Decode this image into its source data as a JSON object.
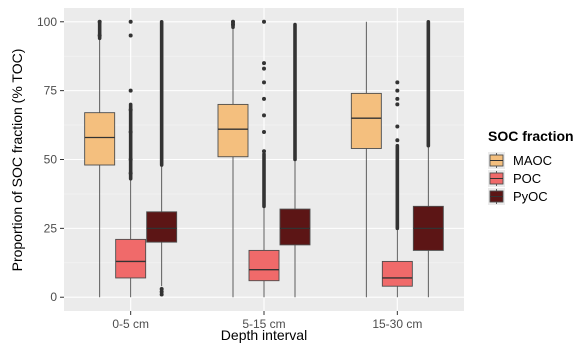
{
  "chart_data": {
    "type": "boxplot",
    "xlabel": "Depth interval",
    "ylabel": "Proportion of SOC fraction (% TOC)",
    "ylim": [
      -5,
      105
    ],
    "yticks": [
      0,
      25,
      50,
      75,
      100
    ],
    "grid": true,
    "legend": {
      "title": "SOC fraction",
      "position": "right",
      "entries": [
        "MAOC",
        "POC",
        "PyOC"
      ]
    },
    "categories": [
      "0-5 cm",
      "5-15 cm",
      "15-30 cm"
    ],
    "series": [
      {
        "name": "MAOC",
        "color": "#f4bf7e",
        "boxes": [
          {
            "min": 0,
            "q1": 48,
            "median": 58,
            "q3": 67,
            "max": 94,
            "outliers_low": [],
            "outliers_high": [
              95,
              100
            ],
            "outlier_band_low": [],
            "outlier_band_high": [
              94,
              100
            ]
          },
          {
            "min": 0,
            "q1": 51,
            "median": 61,
            "q3": 70,
            "max": 98,
            "outliers_low": [],
            "outliers_high": [
              99,
              100
            ],
            "outlier_band_low": [],
            "outlier_band_high": [
              98,
              100
            ]
          },
          {
            "min": 0,
            "q1": 54,
            "median": 65,
            "q3": 74,
            "max": 100,
            "outliers_low": [],
            "outliers_high": [],
            "outlier_band_low": [],
            "outlier_band_high": []
          }
        ]
      },
      {
        "name": "POC",
        "color": "#f06a6a",
        "boxes": [
          {
            "min": 0,
            "q1": 7,
            "median": 13,
            "q3": 21,
            "max": 43,
            "outliers_low": [],
            "outliers_high": [
              45,
              50,
              60,
              68,
              75,
              95,
              100
            ],
            "outlier_band_low": [],
            "outlier_band_high": [
              43,
              70
            ]
          },
          {
            "min": 0,
            "q1": 6,
            "median": 10,
            "q3": 17,
            "max": 33,
            "outliers_low": [],
            "outliers_high": [
              53,
              60,
              66,
              72,
              78,
              83,
              85,
              100
            ],
            "outlier_band_low": [],
            "outlier_band_high": [
              33,
              52
            ]
          },
          {
            "min": 0,
            "q1": 4,
            "median": 7,
            "q3": 13,
            "max": 25,
            "outliers_low": [],
            "outliers_high": [
              57,
              62,
              70,
              72,
              75,
              78
            ],
            "outlier_band_low": [],
            "outlier_band_high": [
              25,
              55
            ]
          }
        ]
      },
      {
        "name": "PyOC",
        "color": "#5c1515",
        "boxes": [
          {
            "min": 4,
            "q1": 20,
            "median": 25,
            "q3": 31,
            "max": 48,
            "outliers_low": [
              1,
              2,
              3
            ],
            "outliers_high": [],
            "outlier_band_low": [],
            "outlier_band_high": [
              48,
              100
            ]
          },
          {
            "min": 0,
            "q1": 19,
            "median": 25,
            "q3": 32,
            "max": 50,
            "outliers_low": [],
            "outliers_high": [],
            "outlier_band_low": [],
            "outlier_band_high": [
              50,
              99
            ]
          },
          {
            "min": 0,
            "q1": 17,
            "median": 25,
            "q3": 33,
            "max": 55,
            "outliers_low": [],
            "outliers_high": [],
            "outlier_band_low": [],
            "outlier_band_high": [
              55,
              100
            ]
          }
        ]
      }
    ]
  }
}
